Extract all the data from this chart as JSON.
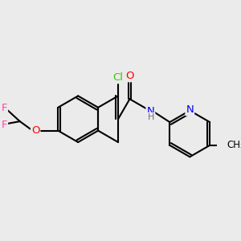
{
  "background_color": "#ebebeb",
  "bond_color": "#000000",
  "bond_lw": 1.5,
  "atom_colors": {
    "Cl": "#33cc00",
    "O": "#ff0000",
    "S": "#ccaa00",
    "N": "#0000ff",
    "F": "#ff44aa",
    "H": "#606060"
  },
  "figsize": [
    3.0,
    3.0
  ],
  "dpi": 100,
  "xlim": [
    0,
    300
  ],
  "ylim": [
    0,
    300
  ]
}
